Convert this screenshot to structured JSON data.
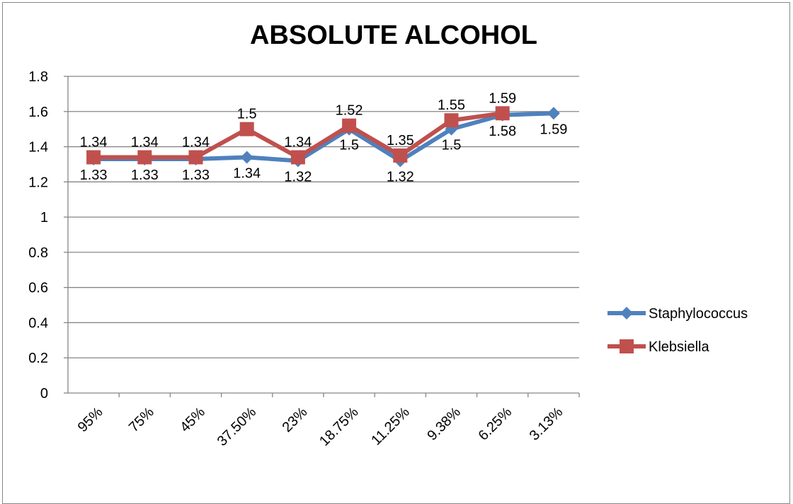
{
  "chart_data": {
    "type": "line",
    "title": "ABSOLUTE ALCOHOL",
    "xlabel": "",
    "ylabel": "",
    "categories": [
      "95%",
      "75%",
      "45%",
      "37.50%",
      "23%",
      "18.75%",
      "11.25%",
      "9.38%",
      "6.25%",
      "3.13%"
    ],
    "ylim": [
      0,
      1.8
    ],
    "yticks": [
      "0",
      "0.2",
      "0.4",
      "0.6",
      "0.8",
      "1",
      "1.2",
      "1.4",
      "1.6",
      "1.8"
    ],
    "grid": true,
    "legend": "right",
    "series": [
      {
        "name": "Staphylococcus",
        "color": "#4F81BD",
        "marker": "diamond",
        "values": [
          1.33,
          1.33,
          1.33,
          1.34,
          1.32,
          1.5,
          1.32,
          1.5,
          1.58,
          1.59
        ],
        "labels": [
          "1.33",
          "1.33",
          "1.33",
          "1.34",
          "1.32",
          "1.5",
          "1.32",
          "1.5",
          "1.58",
          "1.59"
        ]
      },
      {
        "name": "Klebsiella",
        "color": "#C0504D",
        "marker": "square",
        "values": [
          1.34,
          1.34,
          1.34,
          1.5,
          1.34,
          1.52,
          1.35,
          1.55,
          1.59,
          null
        ],
        "labels": [
          "1.34",
          "1.34",
          "1.34",
          "1.5",
          "1.34",
          "1.52",
          "1.35",
          "1.55",
          "1.59",
          null
        ]
      }
    ]
  }
}
